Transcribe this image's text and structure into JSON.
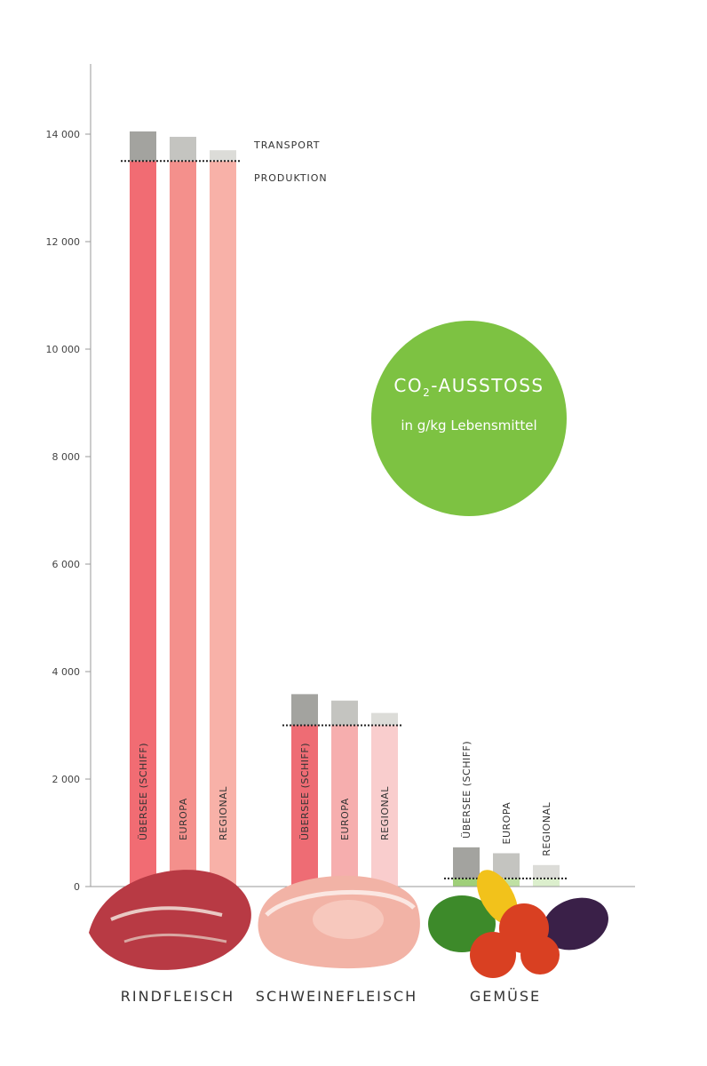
{
  "colors": {
    "axis": "#9a9a9a",
    "bubble": "#7dc242",
    "food_rind": "#b83a44",
    "food_schwein": "#f2b3a6",
    "food_gemuese_green": "#3d8a2a",
    "food_gemuese_red": "#d94022",
    "food_gemuese_purple": "#3a2048",
    "food_gemuese_yellow": "#f2c21b"
  },
  "bubble": {
    "title_prefix": "CO",
    "title_sub": "2",
    "title_suffix": "-AUSSTOSS",
    "subtitle": "in g/kg Lebensmittel"
  },
  "legend": {
    "transport": "TRANSPORT",
    "produktion": "PRODUKTION"
  },
  "chart_data": {
    "type": "bar",
    "stacked": true,
    "y_ticks": [
      0,
      2000,
      4000,
      6000,
      8000,
      10000,
      12000,
      14000
    ],
    "y_tick_labels": [
      "0",
      "2 000",
      "4 000",
      "6 000",
      "8 000",
      "10 000",
      "12 000",
      "14 000"
    ],
    "ylim": [
      0,
      15400
    ],
    "categories": [
      "RINDFLEISCH",
      "SCHWEINEFLEISCH",
      "GEMÜSE"
    ],
    "groups": [
      {
        "category": "RINDFLEISCH",
        "produktion": 13500,
        "bars": [
          {
            "label": "ÜBERSEE (SCHIFF)",
            "produktion": 13500,
            "transport": 550,
            "color_prod": "#f16c73",
            "color_trans": "#a3a39f"
          },
          {
            "label": "EUROPA",
            "produktion": 13500,
            "transport": 450,
            "color_prod": "#f4908c",
            "color_trans": "#c4c4c0"
          },
          {
            "label": "REGIONAL",
            "produktion": 13500,
            "transport": 200,
            "color_prod": "#f8b1a8",
            "color_trans": "#dcdcd8"
          }
        ]
      },
      {
        "category": "SCHWEINEFLEISCH",
        "produktion": 3000,
        "bars": [
          {
            "label": "ÜBERSEE (SCHIFF)",
            "produktion": 3000,
            "transport": 580,
            "color_prod": "#ee6c74",
            "color_trans": "#a3a39f"
          },
          {
            "label": "EUROPA",
            "produktion": 3000,
            "transport": 460,
            "color_prod": "#f6aeae",
            "color_trans": "#c4c4c0"
          },
          {
            "label": "REGIONAL",
            "produktion": 3000,
            "transport": 230,
            "color_prod": "#f9cdcd",
            "color_trans": "#dcdcd8"
          }
        ]
      },
      {
        "category": "GEMÜSE",
        "produktion": 150,
        "bars": [
          {
            "label": "ÜBERSEE (SCHIFF)",
            "produktion": 150,
            "transport": 580,
            "color_prod": "#9fcf79",
            "color_trans": "#a3a39f"
          },
          {
            "label": "EUROPA",
            "produktion": 150,
            "transport": 470,
            "color_prod": "#bfe0a3",
            "color_trans": "#c4c4c0"
          },
          {
            "label": "REGIONAL",
            "produktion": 150,
            "transport": 250,
            "color_prod": "#dcefcd",
            "color_trans": "#dcdcd8"
          }
        ]
      }
    ],
    "series": [
      {
        "name": "PRODUKTION"
      },
      {
        "name": "TRANSPORT"
      }
    ]
  }
}
